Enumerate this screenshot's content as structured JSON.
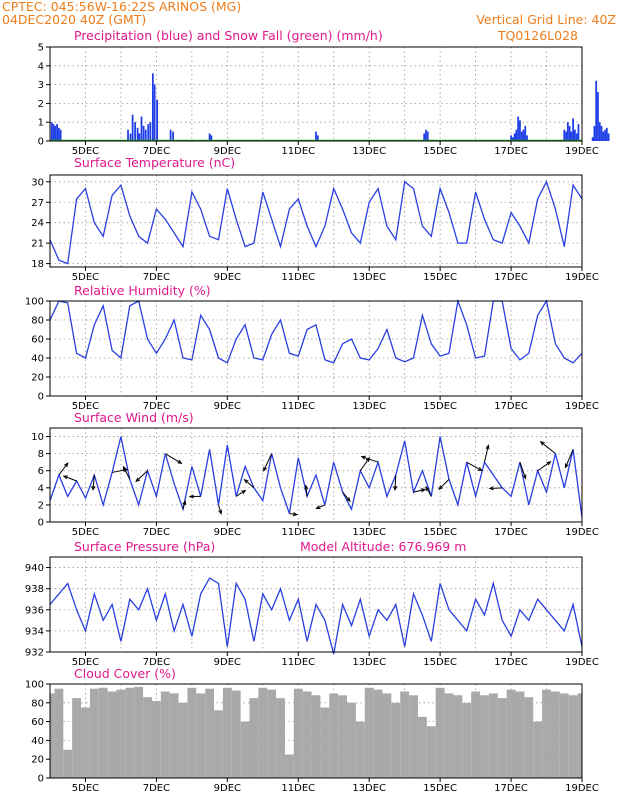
{
  "header": {
    "line1_left": "CPTEC:  045:56W-16:22S  ARINOS (MG)",
    "line2_left": "04DEC2020 40Z (GMT)",
    "line1_right": "Vertical Grid Line: 40Z",
    "line2_right": "TQ0126L028"
  },
  "colors": {
    "header": "#ee7d1c",
    "titles": "#e0188c",
    "series": "#2a3fe0",
    "precip": "#1f3ee8",
    "snow": "#22aa22",
    "cloud": "#a9a9a9"
  },
  "chart_data": [
    {
      "type": "bar",
      "title": "Precipitation (blue) and Snow Fall (green) (mm/h)",
      "x_labels": [
        "5DEC",
        "7DEC",
        "9DEC",
        "11DEC",
        "13DEC",
        "15DEC",
        "17DEC",
        "19DEC"
      ],
      "yticks": [
        "0",
        "1",
        "2",
        "3",
        "4",
        "5"
      ],
      "ylim": [
        0,
        5
      ],
      "grid": true,
      "series": [
        {
          "name": "Precipitation",
          "x": [
            0.05,
            0.1,
            0.15,
            0.2,
            0.25,
            0.3,
            2.2,
            2.27,
            2.33,
            2.4,
            2.47,
            2.52,
            2.58,
            2.64,
            2.7,
            2.77,
            2.83,
            2.9,
            2.95,
            3.02,
            3.4,
            3.47,
            4.5,
            4.55,
            7.5,
            7.55,
            10.55,
            10.6,
            10.65,
            13.0,
            13.05,
            13.1,
            13.15,
            13.2,
            13.25,
            13.3,
            13.35,
            13.4,
            13.45,
            14.5,
            14.55,
            14.6,
            14.65,
            14.7,
            14.75,
            14.8,
            14.85,
            14.9,
            15.3,
            15.35,
            15.4,
            15.45,
            15.5,
            15.55,
            15.6,
            15.65,
            15.7,
            15.75,
            16.2,
            16.25,
            17.25,
            17.3,
            17.35,
            17.4,
            17.45
          ],
          "values": [
            1.0,
            0.9,
            0.8,
            0.9,
            0.7,
            0.6,
            0.6,
            0.4,
            1.4,
            1.0,
            0.7,
            0.4,
            1.3,
            0.8,
            0.6,
            0.9,
            1.0,
            3.6,
            3.0,
            2.2,
            0.6,
            0.5,
            0.4,
            0.3,
            0.5,
            0.3,
            0.4,
            0.6,
            0.5,
            0.3,
            0.2,
            0.4,
            0.6,
            1.3,
            1.1,
            0.5,
            0.6,
            0.8,
            0.3,
            0.6,
            0.5,
            1.0,
            0.8,
            0.5,
            1.2,
            0.6,
            0.4,
            0.9,
            0.2,
            0.8,
            3.2,
            2.6,
            1.0,
            0.8,
            0.5,
            0.6,
            0.7,
            0.4,
            0.3,
            0.2,
            0.6,
            0.9,
            2.1,
            1.0,
            0.4
          ]
        },
        {
          "name": "Snow Fall",
          "x": [
            0,
            15
          ],
          "values": [
            0,
            0
          ]
        }
      ]
    },
    {
      "type": "line",
      "title": "Surface Temperature (nC)",
      "x_labels": [
        "5DEC",
        "7DEC",
        "9DEC",
        "11DEC",
        "13DEC",
        "15DEC",
        "17DEC",
        "19DEC"
      ],
      "yticks": [
        "18",
        "21",
        "24",
        "27",
        "30"
      ],
      "ylim": [
        17.5,
        31
      ],
      "grid": true,
      "x": [
        0,
        0.25,
        0.5,
        0.75,
        1.0,
        1.25,
        1.5,
        1.75,
        2.0,
        2.25,
        2.5,
        2.75,
        3.0,
        3.25,
        3.5,
        3.75,
        4.0,
        4.25,
        4.5,
        4.75,
        5.0,
        5.25,
        5.5,
        5.75,
        6.0,
        6.25,
        6.5,
        6.75,
        7.0,
        7.25,
        7.5,
        7.75,
        8.0,
        8.25,
        8.5,
        8.75,
        9.0,
        9.25,
        9.5,
        9.75,
        10.0,
        10.25,
        10.5,
        10.75,
        11.0,
        11.25,
        11.5,
        11.75,
        12.0,
        12.25,
        12.5,
        12.75,
        13.0,
        13.25,
        13.5,
        13.75,
        14.0,
        14.25,
        14.5,
        14.75,
        15.0
      ],
      "y": [
        21.5,
        18.5,
        18.0,
        27.5,
        29.0,
        24.0,
        22.0,
        28.0,
        29.5,
        25.0,
        22.0,
        21.0,
        26.0,
        24.5,
        22.5,
        20.5,
        28.5,
        26.0,
        22.0,
        21.5,
        29.0,
        24.5,
        20.5,
        21.0,
        28.5,
        24.5,
        20.5,
        26.0,
        27.5,
        23.5,
        20.5,
        23.5,
        29.0,
        26.0,
        22.5,
        21.0,
        27.0,
        29.0,
        23.5,
        21.5,
        30.0,
        29.0,
        23.5,
        22.0,
        29.0,
        25.5,
        21.0,
        21.0,
        28.5,
        24.5,
        21.5,
        21.0,
        25.5,
        23.5,
        21.0,
        27.5,
        30.0,
        26.0,
        20.5,
        29.5,
        27.5
      ]
    },
    {
      "type": "line",
      "title": "Relative Humidity (%)",
      "x_labels": [
        "5DEC",
        "7DEC",
        "9DEC",
        "11DEC",
        "13DEC",
        "15DEC",
        "17DEC",
        "19DEC"
      ],
      "yticks": [
        "0",
        "20",
        "40",
        "60",
        "80",
        "100"
      ],
      "ylim": [
        0,
        100
      ],
      "grid": true,
      "x": [
        0,
        0.25,
        0.5,
        0.75,
        1.0,
        1.25,
        1.5,
        1.75,
        2.0,
        2.25,
        2.5,
        2.75,
        3.0,
        3.25,
        3.5,
        3.75,
        4.0,
        4.25,
        4.5,
        4.75,
        5.0,
        5.25,
        5.5,
        5.75,
        6.0,
        6.25,
        6.5,
        6.75,
        7.0,
        7.25,
        7.5,
        7.75,
        8.0,
        8.25,
        8.5,
        8.75,
        9.0,
        9.25,
        9.5,
        9.75,
        10.0,
        10.25,
        10.5,
        10.75,
        11.0,
        11.25,
        11.5,
        11.75,
        12.0,
        12.25,
        12.5,
        12.75,
        13.0,
        13.25,
        13.5,
        13.75,
        14.0,
        14.25,
        14.5,
        14.75,
        15.0
      ],
      "y": [
        80,
        100,
        98,
        45,
        40,
        75,
        95,
        48,
        40,
        95,
        100,
        60,
        45,
        60,
        80,
        40,
        38,
        85,
        70,
        40,
        35,
        60,
        75,
        40,
        38,
        65,
        80,
        45,
        42,
        70,
        75,
        38,
        35,
        55,
        60,
        40,
        38,
        50,
        70,
        40,
        36,
        40,
        85,
        55,
        42,
        45,
        100,
        75,
        40,
        42,
        100,
        100,
        50,
        38,
        45,
        85,
        100,
        55,
        40,
        35,
        45
      ]
    },
    {
      "type": "line",
      "title": "Surface Wind (m/s)",
      "x_labels": [
        "5DEC",
        "7DEC",
        "9DEC",
        "11DEC",
        "13DEC",
        "15DEC",
        "17DEC",
        "19DEC"
      ],
      "yticks": [
        "0",
        "2",
        "4",
        "6",
        "8",
        "10"
      ],
      "ylim": [
        0,
        11
      ],
      "grid": true,
      "x": [
        0,
        0.25,
        0.5,
        0.75,
        1.0,
        1.25,
        1.5,
        1.75,
        2.0,
        2.25,
        2.5,
        2.75,
        3.0,
        3.25,
        3.5,
        3.75,
        4.0,
        4.25,
        4.5,
        4.75,
        5.0,
        5.25,
        5.5,
        5.75,
        6.0,
        6.25,
        6.5,
        6.75,
        7.0,
        7.25,
        7.5,
        7.75,
        8.0,
        8.25,
        8.5,
        8.75,
        9.0,
        9.25,
        9.5,
        9.75,
        10.0,
        10.25,
        10.5,
        10.75,
        11.0,
        11.25,
        11.5,
        11.75,
        12.0,
        12.25,
        12.5,
        12.75,
        13.0,
        13.25,
        13.5,
        13.75,
        14.0,
        14.25,
        14.5,
        14.75,
        15.0
      ],
      "y": [
        2.5,
        5.5,
        3.0,
        4.8,
        2.8,
        5.5,
        2.0,
        5.8,
        10.0,
        5.0,
        2.0,
        6.0,
        3.0,
        8.0,
        4.5,
        1.5,
        6.5,
        3.0,
        8.5,
        2.0,
        9.0,
        3.0,
        6.5,
        4.0,
        2.5,
        8.0,
        4.0,
        1.0,
        7.5,
        3.0,
        5.5,
        2.0,
        7.0,
        3.5,
        1.5,
        6.0,
        4.0,
        7.0,
        3.0,
        5.5,
        9.5,
        3.5,
        6.0,
        3.0,
        10.0,
        5.0,
        2.0,
        7.0,
        3.0,
        7.0,
        5.5,
        4.0,
        3.0,
        7.0,
        2.0,
        6.0,
        3.5,
        8.0,
        4.0,
        8.5,
        0.5
      ]
    },
    {
      "type": "line",
      "title": "Surface Pressure (hPa)",
      "annotation": "Model Altitude: 676.969 m",
      "x_labels": [
        "5DEC",
        "7DEC",
        "9DEC",
        "11DEC",
        "13DEC",
        "15DEC",
        "17DEC",
        "19DEC"
      ],
      "yticks": [
        "932",
        "934",
        "936",
        "938",
        "940"
      ],
      "ylim": [
        932,
        941
      ],
      "grid": true,
      "x": [
        0,
        0.25,
        0.5,
        0.75,
        1.0,
        1.25,
        1.5,
        1.75,
        2.0,
        2.25,
        2.5,
        2.75,
        3.0,
        3.25,
        3.5,
        3.75,
        4.0,
        4.25,
        4.5,
        4.75,
        5.0,
        5.25,
        5.5,
        5.75,
        6.0,
        6.25,
        6.5,
        6.75,
        7.0,
        7.25,
        7.5,
        7.75,
        8.0,
        8.25,
        8.5,
        8.75,
        9.0,
        9.25,
        9.5,
        9.75,
        10.0,
        10.25,
        10.5,
        10.75,
        11.0,
        11.25,
        11.5,
        11.75,
        12.0,
        12.25,
        12.5,
        12.75,
        13.0,
        13.25,
        13.5,
        13.75,
        14.0,
        14.25,
        14.5,
        14.75,
        15.0
      ],
      "y": [
        936.5,
        937.5,
        938.5,
        936.0,
        934.0,
        937.5,
        935.0,
        936.5,
        933.0,
        937.0,
        936.0,
        938.0,
        935.0,
        937.5,
        934.0,
        936.5,
        933.5,
        937.5,
        939.0,
        938.5,
        932.5,
        938.5,
        937.0,
        933.0,
        937.5,
        936.0,
        938.0,
        935.0,
        937.0,
        933.0,
        936.5,
        935.0,
        931.8,
        936.5,
        934.5,
        937.0,
        933.5,
        936.0,
        935.0,
        936.5,
        932.5,
        937.5,
        935.5,
        933.0,
        938.5,
        936.0,
        935.0,
        934.0,
        937.0,
        935.5,
        938.5,
        935.0,
        933.5,
        936.0,
        935.0,
        937.0,
        936.0,
        935.0,
        934.0,
        936.5,
        932.5
      ]
    },
    {
      "type": "bar",
      "title": "Cloud Cover (%)",
      "x_labels": [
        "5DEC",
        "7DEC",
        "9DEC",
        "11DEC",
        "13DEC",
        "15DEC",
        "17DEC",
        "19DEC"
      ],
      "yticks": [
        "0",
        "20",
        "40",
        "60",
        "80",
        "100"
      ],
      "ylim": [
        0,
        100
      ],
      "grid": true,
      "x": [
        0,
        0.25,
        0.5,
        0.75,
        1.0,
        1.25,
        1.5,
        1.75,
        2.0,
        2.25,
        2.5,
        2.75,
        3.0,
        3.25,
        3.5,
        3.75,
        4.0,
        4.25,
        4.5,
        4.75,
        5.0,
        5.25,
        5.5,
        5.75,
        6.0,
        6.25,
        6.5,
        6.75,
        7.0,
        7.25,
        7.5,
        7.75,
        8.0,
        8.25,
        8.5,
        8.75,
        9.0,
        9.25,
        9.5,
        9.75,
        10.0,
        10.25,
        10.5,
        10.75,
        11.0,
        11.25,
        11.5,
        11.75,
        12.0,
        12.25,
        12.5,
        12.75,
        13.0,
        13.25,
        13.5,
        13.75,
        14.0,
        14.25,
        14.5,
        14.75,
        15.0
      ],
      "values": [
        90,
        95,
        30,
        85,
        75,
        95,
        96,
        92,
        94,
        96,
        97,
        86,
        82,
        92,
        90,
        80,
        96,
        90,
        95,
        72,
        96,
        93,
        60,
        85,
        96,
        94,
        85,
        25,
        95,
        92,
        88,
        75,
        90,
        88,
        80,
        60,
        96,
        94,
        90,
        80,
        92,
        88,
        65,
        55,
        96,
        90,
        88,
        80,
        92,
        88,
        90,
        85,
        94,
        92,
        86,
        60,
        94,
        92,
        90,
        88,
        90
      ]
    }
  ]
}
